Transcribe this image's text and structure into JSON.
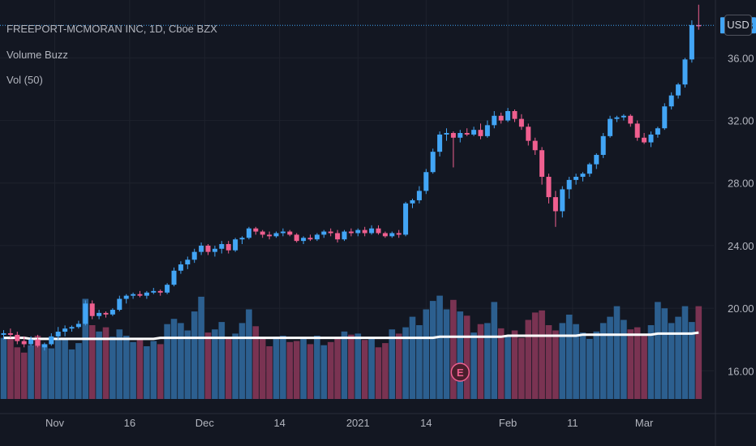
{
  "chart_data": {
    "type": "candlestick",
    "title": "FREEPORT-MCMORAN INC, 1D, Cboe BZX",
    "indicators": [
      "Volume Buzz",
      "Vol (50)"
    ],
    "currency": "USD",
    "last_price": "38.08",
    "y_ticks": [
      "36.00",
      "32.00",
      "28.00",
      "24.00",
      "20.00",
      "16.00"
    ],
    "y_tick_values": [
      36,
      32,
      28,
      24,
      20,
      16
    ],
    "ylim": [
      14.2,
      39.7
    ],
    "x_ticks": [
      "Nov",
      "16",
      "Dec",
      "14",
      "2021",
      "14",
      "Feb",
      "11",
      "Mar"
    ],
    "x_tick_bar_index": [
      7.5,
      18.5,
      29.5,
      40.5,
      52,
      62,
      74,
      83.5,
      94
    ],
    "earnings_marker": "E",
    "earnings_bar_index": 67,
    "colors": {
      "up": "#42a5f5",
      "down": "#ef5f8f",
      "vol_up": "#2c5f8f",
      "vol_down": "#7a3352",
      "avg": "#ffffff",
      "grid": "#1e222d",
      "bg": "#131722"
    },
    "candles": [
      [
        18.3,
        18.6,
        18.0,
        18.4
      ],
      [
        18.4,
        18.7,
        18.1,
        18.3
      ],
      [
        18.3,
        18.5,
        17.7,
        17.9
      ],
      [
        17.9,
        18.2,
        17.5,
        17.7
      ],
      [
        17.7,
        18.2,
        17.6,
        18.0
      ],
      [
        18.0,
        18.3,
        17.5,
        17.6
      ],
      [
        17.5,
        17.8,
        17.3,
        17.7
      ],
      [
        17.7,
        18.4,
        17.6,
        18.2
      ],
      [
        18.2,
        18.8,
        18.0,
        18.5
      ],
      [
        18.5,
        18.9,
        18.2,
        18.7
      ],
      [
        18.7,
        18.9,
        18.5,
        18.8
      ],
      [
        18.8,
        19.2,
        18.7,
        19.0
      ],
      [
        19.0,
        20.5,
        18.9,
        20.3
      ],
      [
        20.3,
        20.5,
        19.3,
        19.5
      ],
      [
        19.5,
        19.9,
        19.3,
        19.7
      ],
      [
        19.7,
        19.8,
        19.4,
        19.6
      ],
      [
        19.6,
        20.0,
        19.5,
        19.9
      ],
      [
        19.9,
        20.8,
        19.8,
        20.6
      ],
      [
        20.6,
        20.9,
        20.3,
        20.8
      ],
      [
        20.8,
        21.0,
        20.6,
        20.9
      ],
      [
        20.9,
        21.1,
        20.7,
        20.8
      ],
      [
        20.8,
        21.1,
        20.6,
        21.0
      ],
      [
        21.0,
        21.3,
        20.9,
        21.1
      ],
      [
        21.1,
        21.2,
        20.8,
        21.0
      ],
      [
        21.0,
        21.6,
        20.9,
        21.5
      ],
      [
        21.5,
        22.6,
        21.4,
        22.4
      ],
      [
        22.4,
        23.0,
        22.2,
        22.8
      ],
      [
        22.8,
        23.3,
        22.5,
        23.1
      ],
      [
        23.1,
        23.8,
        22.9,
        23.6
      ],
      [
        23.6,
        24.2,
        23.4,
        24.0
      ],
      [
        24.0,
        24.1,
        23.4,
        23.6
      ],
      [
        23.6,
        24.0,
        23.3,
        23.8
      ],
      [
        23.8,
        24.3,
        23.5,
        24.1
      ],
      [
        24.1,
        24.3,
        23.5,
        23.7
      ],
      [
        23.7,
        24.5,
        23.6,
        24.4
      ],
      [
        24.4,
        24.6,
        24.1,
        24.5
      ],
      [
        24.5,
        25.2,
        24.4,
        25.1
      ],
      [
        25.1,
        25.2,
        24.7,
        24.9
      ],
      [
        24.9,
        25.0,
        24.5,
        24.7
      ],
      [
        24.7,
        24.9,
        24.4,
        24.6
      ],
      [
        24.6,
        24.9,
        24.5,
        24.8
      ],
      [
        24.8,
        25.1,
        24.6,
        24.9
      ],
      [
        24.9,
        25.0,
        24.6,
        24.7
      ],
      [
        24.7,
        24.8,
        24.2,
        24.3
      ],
      [
        24.3,
        24.6,
        24.1,
        24.5
      ],
      [
        24.5,
        24.7,
        24.3,
        24.4
      ],
      [
        24.4,
        24.8,
        24.3,
        24.7
      ],
      [
        24.7,
        25.0,
        24.5,
        24.9
      ],
      [
        24.9,
        25.1,
        24.6,
        24.8
      ],
      [
        24.8,
        25.0,
        24.2,
        24.4
      ],
      [
        24.4,
        25.0,
        24.3,
        24.9
      ],
      [
        24.9,
        25.1,
        24.6,
        24.8
      ],
      [
        24.8,
        25.1,
        24.6,
        25.0
      ],
      [
        25.0,
        25.2,
        24.6,
        24.8
      ],
      [
        24.8,
        25.3,
        24.7,
        25.1
      ],
      [
        25.1,
        25.3,
        24.7,
        24.8
      ],
      [
        24.8,
        24.9,
        24.5,
        24.6
      ],
      [
        24.6,
        24.9,
        24.5,
        24.8
      ],
      [
        24.8,
        25.0,
        24.5,
        24.7
      ],
      [
        24.7,
        26.8,
        24.6,
        26.7
      ],
      [
        26.7,
        27.0,
        26.4,
        26.9
      ],
      [
        26.9,
        27.8,
        26.7,
        27.5
      ],
      [
        27.5,
        28.9,
        27.3,
        28.7
      ],
      [
        28.7,
        30.2,
        28.6,
        30.0
      ],
      [
        30.0,
        31.3,
        29.7,
        31.1
      ],
      [
        31.1,
        31.5,
        30.7,
        31.2
      ],
      [
        31.2,
        31.3,
        29.0,
        30.9
      ],
      [
        30.9,
        31.4,
        30.6,
        31.2
      ],
      [
        31.2,
        31.5,
        31.0,
        31.1
      ],
      [
        31.1,
        31.6,
        31.0,
        31.4
      ],
      [
        31.4,
        31.8,
        30.8,
        31.0
      ],
      [
        31.0,
        32.0,
        30.9,
        31.7
      ],
      [
        31.7,
        32.6,
        31.5,
        32.3
      ],
      [
        32.3,
        32.5,
        31.8,
        32.0
      ],
      [
        32.0,
        32.8,
        31.9,
        32.6
      ],
      [
        32.6,
        32.7,
        31.9,
        32.1
      ],
      [
        32.1,
        32.4,
        31.4,
        31.6
      ],
      [
        31.6,
        31.8,
        30.4,
        30.7
      ],
      [
        30.7,
        30.9,
        29.8,
        30.1
      ],
      [
        30.1,
        30.3,
        27.9,
        28.4
      ],
      [
        28.4,
        28.6,
        26.7,
        27.1
      ],
      [
        27.1,
        27.5,
        25.2,
        26.2
      ],
      [
        26.2,
        27.8,
        25.8,
        27.6
      ],
      [
        27.6,
        28.4,
        27.0,
        28.2
      ],
      [
        28.2,
        28.6,
        27.9,
        28.4
      ],
      [
        28.4,
        28.7,
        28.1,
        28.6
      ],
      [
        28.6,
        29.3,
        28.4,
        29.2
      ],
      [
        29.2,
        29.9,
        28.9,
        29.8
      ],
      [
        29.8,
        31.2,
        29.6,
        31.0
      ],
      [
        31.0,
        32.3,
        30.9,
        32.1
      ],
      [
        32.1,
        32.3,
        31.9,
        32.2
      ],
      [
        32.2,
        32.4,
        32.0,
        32.3
      ],
      [
        32.3,
        32.4,
        31.6,
        31.8
      ],
      [
        31.8,
        32.0,
        30.7,
        30.9
      ],
      [
        30.9,
        31.2,
        30.5,
        30.6
      ],
      [
        30.6,
        31.3,
        30.3,
        31.1
      ],
      [
        31.1,
        31.6,
        30.9,
        31.5
      ],
      [
        31.5,
        33.1,
        31.4,
        32.9
      ],
      [
        32.9,
        33.8,
        32.7,
        33.6
      ],
      [
        33.6,
        34.4,
        33.4,
        34.3
      ],
      [
        34.3,
        36.0,
        34.1,
        35.9
      ],
      [
        35.9,
        38.4,
        35.7,
        38.1
      ],
      [
        38.1,
        39.4,
        37.8,
        38.08
      ]
    ],
    "volume": [
      58,
      57,
      49,
      44,
      51,
      60,
      52,
      48,
      56,
      58,
      47,
      53,
      95,
      70,
      64,
      68,
      59,
      66,
      60,
      54,
      56,
      50,
      55,
      52,
      71,
      76,
      72,
      65,
      83,
      97,
      63,
      66,
      73,
      58,
      62,
      72,
      85,
      69,
      57,
      50,
      59,
      60,
      54,
      55,
      58,
      52,
      60,
      51,
      54,
      57,
      64,
      61,
      62,
      56,
      58,
      49,
      53,
      66,
      62,
      68,
      78,
      70,
      85,
      93,
      98,
      85,
      94,
      83,
      79,
      63,
      71,
      72,
      92,
      67,
      60,
      65,
      58,
      75,
      82,
      84,
      70,
      65,
      72,
      80,
      71,
      63,
      57,
      64,
      72,
      78,
      88,
      75,
      66,
      68,
      60,
      70,
      92,
      86,
      72,
      78,
      88,
      73,
      88
    ],
    "vol_ylim": [
      0,
      100
    ],
    "avg_line": [
      58,
      58,
      58,
      58,
      57,
      57,
      57,
      57,
      57,
      57,
      57,
      57,
      57,
      57,
      57,
      57,
      57,
      57,
      57,
      57,
      57,
      57,
      57,
      58,
      58,
      58,
      58,
      58,
      58,
      58,
      58,
      58,
      58,
      58,
      58,
      58,
      58,
      58,
      58,
      58,
      58,
      58,
      58,
      58,
      58,
      58,
      58,
      58,
      58,
      58,
      58,
      58,
      58,
      58,
      58,
      58,
      58,
      58,
      58,
      58,
      58,
      58,
      58,
      58,
      59,
      59,
      59,
      59,
      59,
      59,
      59,
      59,
      59,
      59,
      60,
      60,
      60,
      60,
      60,
      60,
      60,
      60,
      60,
      60,
      60,
      61,
      61,
      61,
      61,
      61,
      61,
      61,
      61,
      61,
      61,
      61,
      62,
      62,
      62,
      62,
      62,
      62,
      63
    ]
  },
  "ui": {
    "usd_label": "USD"
  }
}
